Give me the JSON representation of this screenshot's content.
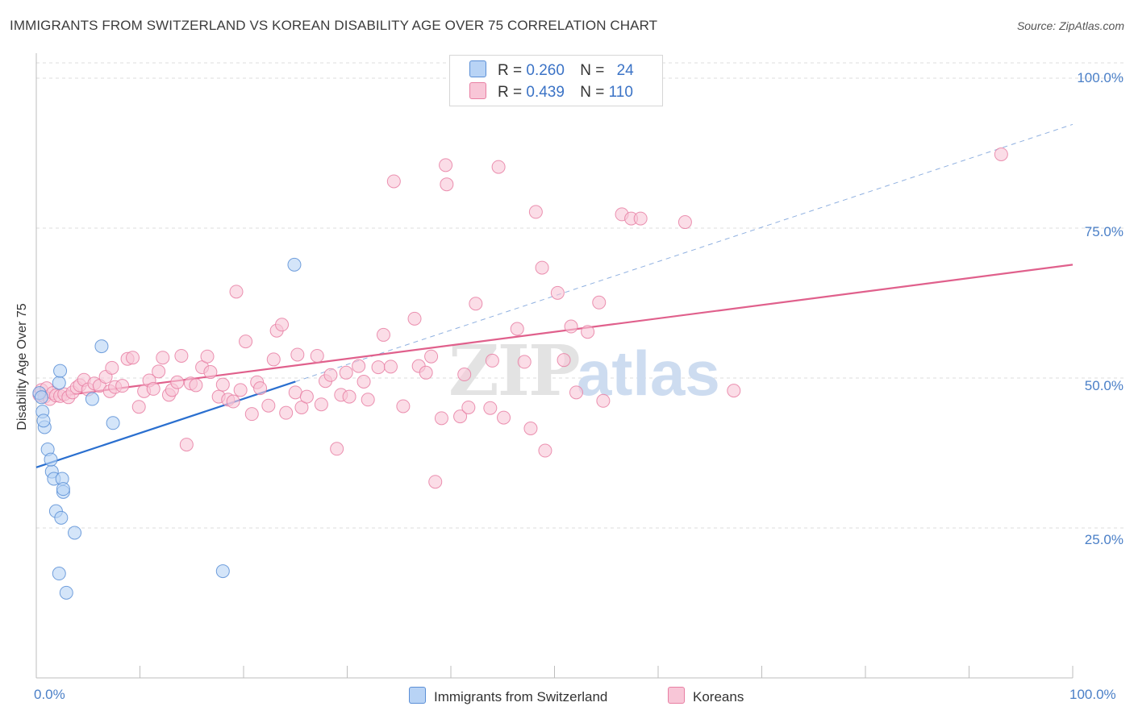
{
  "title": "IMMIGRANTS FROM SWITZERLAND VS KOREAN DISABILITY AGE OVER 75 CORRELATION CHART",
  "source": "Source: ZipAtlas.com",
  "colors": {
    "blue": "#5b8fd6",
    "blue_fill": "#b8d3f5",
    "blue_line": "#2a6fcf",
    "pink": "#e87fa3",
    "pink_fill": "#f8c6d7",
    "pink_line": "#e0608c",
    "grid": "#dcdcdc",
    "tick_text": "#4a7fc7"
  },
  "legend": {
    "rows": [
      {
        "r_label": "R =",
        "r_value": "0.260",
        "n_label": "N =",
        "n_value": "24"
      },
      {
        "r_label": "R =",
        "r_value": "0.439",
        "n_label": "N =",
        "n_value": "110"
      }
    ]
  },
  "bottom_legend": {
    "series1": "Immigrants from Switzerland",
    "series2": "Koreans"
  },
  "chart_data": {
    "type": "scatter",
    "title": "IMMIGRANTS FROM SWITZERLAND VS KOREAN DISABILITY AGE OVER 75 CORRELATION CHART",
    "xlabel": "",
    "ylabel": "Disability Age Over 75",
    "xlim": [
      0,
      100
    ],
    "ylim": [
      0,
      105
    ],
    "x_tick_labels": [
      "0.0%",
      "100.0%"
    ],
    "y_ticks": [
      25,
      50,
      75,
      100
    ],
    "y_tick_labels": [
      "25.0%",
      "50.0%",
      "75.0%",
      "100.0%"
    ],
    "grid": true,
    "legend_position": "top-center",
    "watermark": "ZIPatlas",
    "series": [
      {
        "name": "Immigrants from Switzerland",
        "r": 0.26,
        "n": 24,
        "trend": {
          "x": [
            0,
            25
          ],
          "y": [
            35.1,
            49.4
          ]
        },
        "trend_extension": {
          "x": [
            25,
            100
          ],
          "y": [
            49.4,
            92.3
          ]
        },
        "points": [
          [
            0.3,
            47.5
          ],
          [
            0.5,
            46.8
          ],
          [
            0.6,
            44.4
          ],
          [
            0.8,
            41.8
          ],
          [
            0.7,
            42.9
          ],
          [
            1.1,
            38.1
          ],
          [
            1.5,
            34.4
          ],
          [
            1.4,
            36.4
          ],
          [
            1.7,
            33.2
          ],
          [
            1.9,
            27.8
          ],
          [
            2.2,
            17.4
          ],
          [
            2.2,
            49.2
          ],
          [
            2.3,
            51.2
          ],
          [
            2.4,
            26.7
          ],
          [
            2.5,
            33.2
          ],
          [
            2.6,
            31.0
          ],
          [
            2.6,
            31.5
          ],
          [
            2.9,
            14.2
          ],
          [
            3.7,
            24.2
          ],
          [
            5.4,
            46.5
          ],
          [
            6.3,
            55.3
          ],
          [
            7.4,
            42.5
          ],
          [
            18.0,
            17.8
          ],
          [
            24.9,
            68.9
          ]
        ]
      },
      {
        "name": "Koreans",
        "r": 0.439,
        "n": 110,
        "trend": {
          "x": [
            0,
            100
          ],
          "y": [
            46.5,
            68.9
          ]
        },
        "points": [
          [
            0.3,
            47.2
          ],
          [
            0.5,
            48.0
          ],
          [
            0.8,
            46.9
          ],
          [
            1.0,
            48.3
          ],
          [
            1.3,
            46.5
          ],
          [
            1.6,
            47.5
          ],
          [
            1.9,
            47.1
          ],
          [
            2.3,
            47.0
          ],
          [
            2.7,
            47.3
          ],
          [
            3.1,
            46.8
          ],
          [
            3.5,
            47.6
          ],
          [
            3.9,
            48.4
          ],
          [
            4.2,
            48.8
          ],
          [
            4.6,
            49.7
          ],
          [
            5.0,
            48.1
          ],
          [
            5.6,
            49.1
          ],
          [
            6.1,
            48.7
          ],
          [
            6.7,
            50.2
          ],
          [
            7.1,
            47.8
          ],
          [
            7.3,
            51.7
          ],
          [
            7.6,
            48.5
          ],
          [
            8.3,
            48.7
          ],
          [
            8.8,
            53.2
          ],
          [
            9.3,
            53.4
          ],
          [
            9.9,
            45.2
          ],
          [
            10.4,
            47.8
          ],
          [
            10.9,
            49.6
          ],
          [
            11.3,
            48.2
          ],
          [
            11.8,
            51.1
          ],
          [
            12.2,
            53.4
          ],
          [
            12.8,
            47.2
          ],
          [
            13.1,
            48.0
          ],
          [
            13.6,
            49.3
          ],
          [
            14.0,
            53.7
          ],
          [
            14.5,
            38.9
          ],
          [
            14.9,
            49.1
          ],
          [
            15.4,
            48.8
          ],
          [
            16.0,
            51.8
          ],
          [
            16.5,
            53.6
          ],
          [
            16.8,
            51.0
          ],
          [
            17.6,
            46.9
          ],
          [
            18.0,
            48.9
          ],
          [
            18.5,
            46.4
          ],
          [
            19.0,
            46.1
          ],
          [
            19.3,
            64.4
          ],
          [
            19.7,
            48.0
          ],
          [
            20.2,
            56.1
          ],
          [
            20.8,
            44.0
          ],
          [
            21.3,
            49.3
          ],
          [
            21.6,
            48.3
          ],
          [
            22.4,
            45.4
          ],
          [
            22.9,
            53.1
          ],
          [
            23.2,
            57.9
          ],
          [
            23.7,
            58.9
          ],
          [
            24.1,
            44.2
          ],
          [
            25.0,
            47.6
          ],
          [
            25.2,
            53.9
          ],
          [
            25.6,
            45.1
          ],
          [
            26.1,
            46.9
          ],
          [
            27.1,
            53.7
          ],
          [
            27.5,
            45.6
          ],
          [
            27.9,
            49.5
          ],
          [
            28.4,
            50.5
          ],
          [
            29.0,
            38.2
          ],
          [
            29.4,
            47.2
          ],
          [
            29.9,
            50.9
          ],
          [
            30.2,
            46.9
          ],
          [
            31.1,
            52.0
          ],
          [
            31.6,
            49.4
          ],
          [
            32.0,
            46.4
          ],
          [
            33.5,
            57.2
          ],
          [
            33.0,
            51.8
          ],
          [
            34.2,
            51.9
          ],
          [
            34.5,
            82.8
          ],
          [
            35.4,
            45.3
          ],
          [
            36.5,
            59.9
          ],
          [
            36.9,
            52.0
          ],
          [
            37.6,
            50.9
          ],
          [
            38.1,
            53.6
          ],
          [
            38.5,
            32.7
          ],
          [
            39.1,
            43.3
          ],
          [
            39.5,
            85.5
          ],
          [
            39.6,
            82.3
          ],
          [
            40.9,
            43.6
          ],
          [
            41.3,
            50.6
          ],
          [
            41.7,
            45.1
          ],
          [
            42.4,
            62.4
          ],
          [
            44.0,
            52.9
          ],
          [
            44.6,
            85.2
          ],
          [
            43.8,
            45.0
          ],
          [
            45.1,
            43.4
          ],
          [
            46.4,
            58.2
          ],
          [
            47.1,
            52.7
          ],
          [
            47.7,
            41.6
          ],
          [
            48.2,
            77.7
          ],
          [
            48.8,
            68.4
          ],
          [
            49.1,
            37.9
          ],
          [
            50.3,
            64.2
          ],
          [
            50.9,
            53.0
          ],
          [
            51.6,
            58.6
          ],
          [
            52.1,
            47.6
          ],
          [
            53.2,
            57.7
          ],
          [
            54.3,
            62.6
          ],
          [
            54.7,
            46.2
          ],
          [
            56.5,
            77.3
          ],
          [
            57.4,
            76.6
          ],
          [
            58.3,
            76.6
          ],
          [
            62.6,
            76.0
          ],
          [
            67.3,
            47.9
          ],
          [
            93.1,
            87.3
          ]
        ]
      }
    ]
  }
}
